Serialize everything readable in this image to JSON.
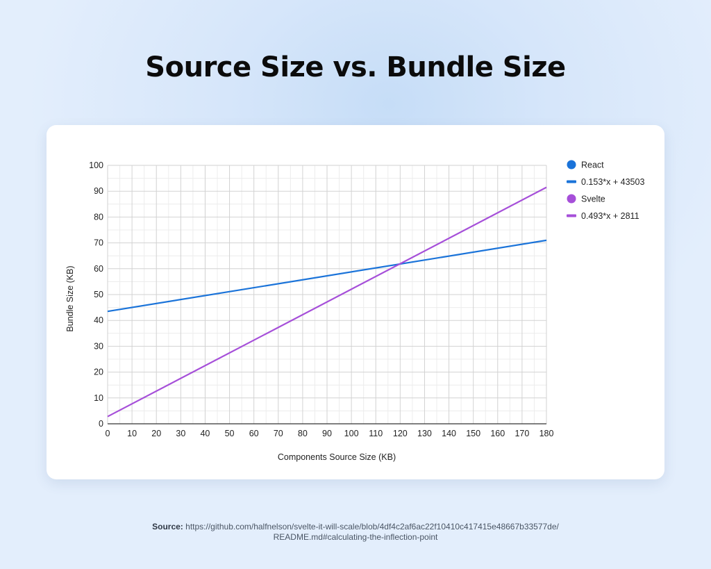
{
  "page": {
    "title": "Source Size vs. Bundle Size"
  },
  "footer": {
    "source_label": "Source:",
    "source_url_line1": "https://github.com/halfnelson/svelte-it-will-scale/blob/4df4c2af6ac22f10410c417415e48667b33577de/",
    "source_url_line2": "README.md#calculating-the-inflection-point"
  },
  "chart_data": {
    "type": "line",
    "title": "",
    "xlabel": "Components Source Size (KB)",
    "ylabel": "Bundle Size (KB)",
    "xlim": [
      0,
      180
    ],
    "ylim": [
      0,
      100
    ],
    "x_ticks": [
      0,
      10,
      20,
      30,
      40,
      50,
      60,
      70,
      80,
      90,
      100,
      110,
      120,
      130,
      140,
      150,
      160,
      170,
      180
    ],
    "y_ticks": [
      0,
      10,
      20,
      30,
      40,
      50,
      60,
      70,
      80,
      90,
      100
    ],
    "grid": true,
    "legend_position": "right",
    "series": [
      {
        "name": "React",
        "color": "#1a73d9",
        "marker": "circle",
        "x": [
          0,
          180
        ],
        "y": [
          43.5,
          71.0
        ]
      },
      {
        "name": "0.153*x + 43503",
        "color": "#1a73d9",
        "marker": "line"
      },
      {
        "name": "Svelte",
        "color": "#a64fd9",
        "marker": "circle",
        "x": [
          0,
          180
        ],
        "y": [
          2.8,
          91.5
        ]
      },
      {
        "name": "0.493*x + 2811",
        "color": "#a64fd9",
        "marker": "line"
      }
    ]
  }
}
